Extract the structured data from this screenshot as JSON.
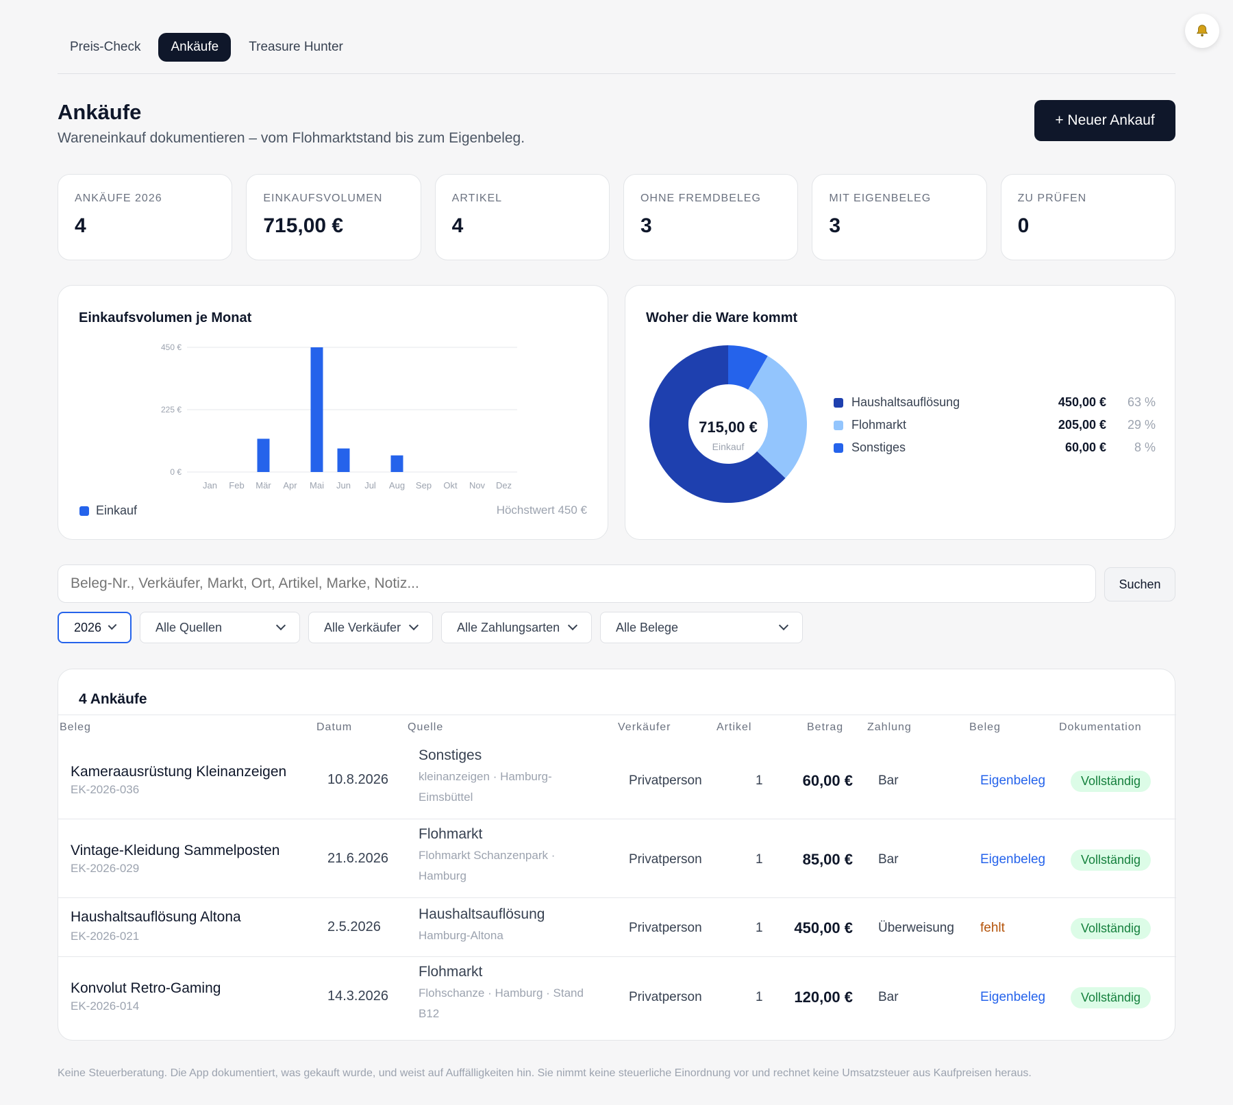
{
  "tabs": [
    {
      "label": "Preis-Check"
    },
    {
      "label": "Ankäufe"
    },
    {
      "label": "Treasure Hunter"
    }
  ],
  "header": {
    "title": "Ankäufe",
    "subtitle": "Wareneinkauf dokumentieren – vom Flohmarktstand bis zum Eigenbeleg.",
    "new_button": "+ Neuer Ankauf"
  },
  "kpis": [
    {
      "label": "Ankäufe 2026",
      "value": "4"
    },
    {
      "label": "Einkaufsvolumen",
      "value": "715,00 €"
    },
    {
      "label": "Artikel",
      "value": "4"
    },
    {
      "label": "Ohne Fremdbeleg",
      "value": "3"
    },
    {
      "label": "Mit Eigenbeleg",
      "value": "3"
    },
    {
      "label": "Zu prüfen",
      "value": "0"
    }
  ],
  "colors": {
    "accent": "#2563eb",
    "dark": "#0f172a",
    "donut1": "#1e40af",
    "donut2": "#93c5fd",
    "donut3": "#2563eb"
  },
  "bar_card": {
    "title": "Einkaufsvolumen je Monat",
    "legend": "Einkauf",
    "max_label": "Höchstwert 450 €"
  },
  "donut_card": {
    "title": "Woher die Ware kommt",
    "center_value": "715,00 €",
    "center_label": "Einkauf",
    "items": [
      {
        "name": "Haushaltsauflösung",
        "value": "450,00 €",
        "pct": "63 %"
      },
      {
        "name": "Flohmarkt",
        "value": "205,00 €",
        "pct": "29 %"
      },
      {
        "name": "Sonstiges",
        "value": "60,00 €",
        "pct": "8 %"
      }
    ]
  },
  "chart_data": [
    {
      "type": "bar",
      "title": "Einkaufsvolumen je Monat",
      "categories": [
        "Jan",
        "Feb",
        "Mär",
        "Apr",
        "Mai",
        "Jun",
        "Jul",
        "Aug",
        "Sep",
        "Okt",
        "Nov",
        "Dez"
      ],
      "series": [
        {
          "name": "Einkauf",
          "values": [
            0,
            0,
            120,
            0,
            450,
            85,
            0,
            60,
            0,
            0,
            0,
            0
          ]
        }
      ],
      "ylim": [
        0,
        450
      ],
      "yticks": [
        "0 €",
        "225 €",
        "450 €"
      ],
      "ytick_values": [
        0,
        225,
        450
      ],
      "grid": true
    },
    {
      "type": "pie",
      "title": "Woher die Ware kommt",
      "categories": [
        "Haushaltsauflösung",
        "Flohmarkt",
        "Sonstiges"
      ],
      "values": [
        450,
        205,
        60
      ]
    }
  ],
  "search": {
    "placeholder": "Beleg-Nr., Verkäufer, Markt, Ort, Artikel, Marke, Notiz...",
    "button": "Suchen"
  },
  "filters": [
    {
      "value": "2026"
    },
    {
      "value": "Alle Quellen"
    },
    {
      "value": "Alle Verkäufer"
    },
    {
      "value": "Alle Zahlungsarten"
    },
    {
      "value": "Alle Belege"
    }
  ],
  "table": {
    "title": "4 Ankäufe",
    "headers": [
      "Beleg",
      "Datum",
      "Quelle",
      "Verkäufer",
      "Artikel",
      "Betrag",
      "Zahlung",
      "Beleg",
      "Dokumentation"
    ],
    "rows": [
      {
        "title": "Kameraausrüstung Kleinanzeigen",
        "id": "EK-2026-036",
        "date": "10.8.2026",
        "source": "Sonstiges",
        "source_sub": "kleinanzeigen · Hamburg-Eimsbüttel",
        "seller": "Privatperson",
        "items": "1",
        "amount": "60,00 €",
        "payment": "Bar",
        "beleg": "Eigenbeleg",
        "doc": "Vollständig"
      },
      {
        "title": "Vintage-Kleidung Sammelposten",
        "id": "EK-2026-029",
        "date": "21.6.2026",
        "source": "Flohmarkt",
        "source_sub": "Flohmarkt Schanzenpark · Hamburg",
        "seller": "Privatperson",
        "items": "1",
        "amount": "85,00 €",
        "payment": "Bar",
        "beleg": "Eigenbeleg",
        "doc": "Vollständig"
      },
      {
        "title": "Haushaltsauflösung Altona",
        "id": "EK-2026-021",
        "date": "2.5.2026",
        "source": "Haushaltsauflösung",
        "source_sub": "Hamburg-Altona",
        "seller": "Privatperson",
        "items": "1",
        "amount": "450,00 €",
        "payment": "Überweisung",
        "beleg": "fehlt",
        "doc": "Vollständig"
      },
      {
        "title": "Konvolut Retro-Gaming",
        "id": "EK-2026-014",
        "date": "14.3.2026",
        "source": "Flohmarkt",
        "source_sub": "Flohschanze · Hamburg · Stand B12",
        "seller": "Privatperson",
        "items": "1",
        "amount": "120,00 €",
        "payment": "Bar",
        "beleg": "Eigenbeleg",
        "doc": "Vollständig"
      }
    ]
  },
  "footer": "Keine Steuerberatung. Die App dokumentiert, was gekauft wurde, und weist auf Auffälligkeiten hin. Sie nimmt keine steuerliche Einordnung vor und rechnet keine Umsatzsteuer aus Kaufpreisen heraus."
}
